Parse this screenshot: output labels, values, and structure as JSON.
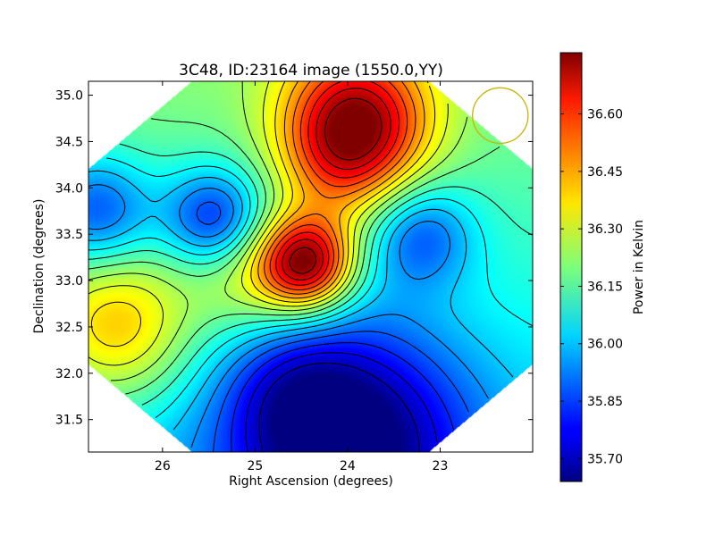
{
  "chart_data": {
    "type": "heatmap",
    "title": "3C48, ID:23164 image (1550.0,YY)",
    "xlabel": "Right Ascension (degrees)",
    "ylabel": "Declination (degrees)",
    "xlim": [
      26.8,
      22.0
    ],
    "ylim": [
      31.15,
      35.15
    ],
    "x_ticks": [
      26,
      25,
      24,
      23
    ],
    "x_tick_labels": [
      "26",
      "25",
      "24",
      "23"
    ],
    "y_ticks": [
      31.5,
      32.0,
      32.5,
      33.0,
      33.5,
      34.0,
      34.5,
      35.0
    ],
    "y_tick_labels": [
      "31.5",
      "32.0",
      "32.5",
      "33.0",
      "33.5",
      "34.0",
      "34.5",
      "35.0"
    ],
    "colorbar": {
      "label": "Power in Kelvin",
      "range": [
        35.64,
        36.76
      ],
      "ticks": [
        35.7,
        35.85,
        36.0,
        36.15,
        36.3,
        36.45,
        36.6
      ],
      "tick_labels": [
        "35.70",
        "35.85",
        "36.00",
        "36.15",
        "36.30",
        "36.45",
        "36.60"
      ],
      "colormap": "jet"
    },
    "field_components": [
      {
        "kind": "base",
        "value": 36.1
      },
      {
        "kind": "peak",
        "ra": 24.45,
        "dec": 33.18,
        "amplitude": 0.63,
        "sigma": 0.36
      },
      {
        "kind": "peak",
        "ra": 23.9,
        "dec": 34.7,
        "amplitude": 0.55,
        "sigma": 0.55
      },
      {
        "kind": "peak",
        "ra": 26.5,
        "dec": 32.5,
        "amplitude": 0.32,
        "sigma": 0.6
      },
      {
        "kind": "peak",
        "ra": 25.1,
        "dec": 33.0,
        "amplitude": 0.18,
        "sigma": 0.45
      },
      {
        "kind": "peak",
        "ra": 24.1,
        "dec": 34.2,
        "amplitude": 0.15,
        "sigma": 0.45
      },
      {
        "kind": "dip",
        "ra": 25.45,
        "dec": 33.68,
        "amplitude": 0.32,
        "sigma": 0.38
      },
      {
        "kind": "dip",
        "ra": 26.7,
        "dec": 33.75,
        "amplitude": 0.28,
        "sigma": 0.42
      },
      {
        "kind": "dip",
        "ra": 23.2,
        "dec": 33.5,
        "amplitude": 0.24,
        "sigma": 0.4
      },
      {
        "kind": "dip",
        "ra": 24.0,
        "dec": 31.3,
        "amplitude": 0.45,
        "sigma": 0.9
      },
      {
        "kind": "dip",
        "ra": 24.6,
        "dec": 31.8,
        "amplitude": 0.12,
        "sigma": 0.5
      },
      {
        "kind": "gradient",
        "dec_center": 33.0,
        "slope_per_degree": 0.05
      }
    ],
    "contours": {
      "step": 0.06,
      "color": "#000000"
    },
    "beam": {
      "ra": 22.35,
      "dec": 34.78,
      "radius_deg": 0.3,
      "color": "#c8b400"
    },
    "valid_region": "diamond"
  }
}
